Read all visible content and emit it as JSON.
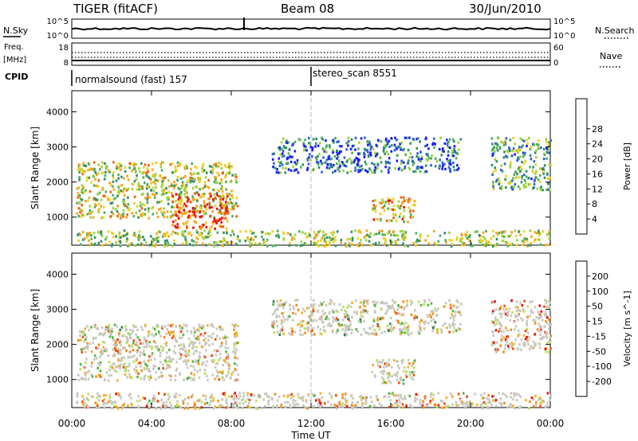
{
  "header": {
    "radar": "TIGER (fitACF)",
    "beam": "Beam 08",
    "date": "30/Jun/2010"
  },
  "strip_labels": {
    "nsky": "N.Sky",
    "freq_line1": "Freq.",
    "freq_line2": "[MHz]",
    "cpid": "CPID",
    "nsearch": "N.Search",
    "nave": "Nave",
    "nsky_top": "10^5",
    "nsky_bottom": "10^0",
    "freq_top": "18",
    "freq_bottom": "8",
    "nave_top": "60",
    "nave_bottom": "0"
  },
  "cpid_labels": {
    "first": "normalsound (fast) 157",
    "second": "stereo_scan 8551"
  },
  "colors": {
    "power": [
      "#1a1aff",
      "#2f63d6",
      "#2f8f6a",
      "#4fae5a",
      "#9fd23c",
      "#f0d020",
      "#f7a11a",
      "#f06010",
      "#ee1010"
    ],
    "velocity": [
      "#e81010",
      "#f05010",
      "#f78a10",
      "#f7b020",
      "#c8c8c0",
      "#b7e35a",
      "#4fb83a",
      "#2e7d54",
      "#2840c8"
    ],
    "grey_shading": "#c8c8c0"
  },
  "chart_data": [
    {
      "type": "heatmap",
      "panel": "power",
      "ylabel": "Slant Range [km]",
      "yticks": [
        "1000",
        "2000",
        "3000",
        "4000"
      ],
      "ylim": [
        200,
        4600
      ],
      "colorbar_label": "Power [dB]",
      "colorbar_ticks": [
        "4",
        "8",
        "12",
        "16",
        "20",
        "24",
        "28"
      ],
      "clim": [
        0,
        32
      ],
      "regions": [
        {
          "t0": 0.2,
          "t1": 8.3,
          "r0": 1000,
          "r1": 2600,
          "level": 0.55
        },
        {
          "t0": 5.0,
          "t1": 7.8,
          "r0": 700,
          "r1": 1700,
          "level": 0.9
        },
        {
          "t0": 0.2,
          "t1": 24.0,
          "r0": 200,
          "r1": 650,
          "level": 0.5
        },
        {
          "t0": 15.0,
          "t1": 17.2,
          "r0": 900,
          "r1": 1600,
          "level": 0.7
        },
        {
          "t0": 10.0,
          "t1": 19.5,
          "r0": 2300,
          "r1": 3300,
          "level": 0.2
        },
        {
          "t0": 21.0,
          "t1": 24.0,
          "r0": 1800,
          "r1": 3300,
          "level": 0.35
        }
      ]
    },
    {
      "type": "heatmap",
      "panel": "velocity",
      "ylabel": "Slant Range [km]",
      "yticks": [
        "1000",
        "2000",
        "3000",
        "4000"
      ],
      "ylim": [
        200,
        4600
      ],
      "colorbar_label": "Velocity [m s^-1]",
      "colorbar_ticks": [
        "200",
        "100",
        "50",
        "15",
        "-15",
        "-50",
        "-100",
        "-200"
      ],
      "clim": [
        -250,
        250
      ],
      "regions": [
        {
          "t0": 0.2,
          "t1": 8.3,
          "r0": 1000,
          "r1": 2600,
          "level": 0.45
        },
        {
          "t0": 0.2,
          "t1": 24.0,
          "r0": 200,
          "r1": 650,
          "level": 0.35
        },
        {
          "t0": 15.0,
          "t1": 17.2,
          "r0": 900,
          "r1": 1600,
          "level": 0.45
        },
        {
          "t0": 10.0,
          "t1": 19.5,
          "r0": 2300,
          "r1": 3300,
          "level": 0.5
        },
        {
          "t0": 21.0,
          "t1": 24.0,
          "r0": 1800,
          "r1": 3300,
          "level": 0.3
        }
      ]
    }
  ],
  "xaxis": {
    "label": "Time UT",
    "ticks": [
      "00:00",
      "04:00",
      "08:00",
      "12:00",
      "16:00",
      "20:00",
      "00:00"
    ],
    "xlim": [
      0,
      24
    ]
  }
}
